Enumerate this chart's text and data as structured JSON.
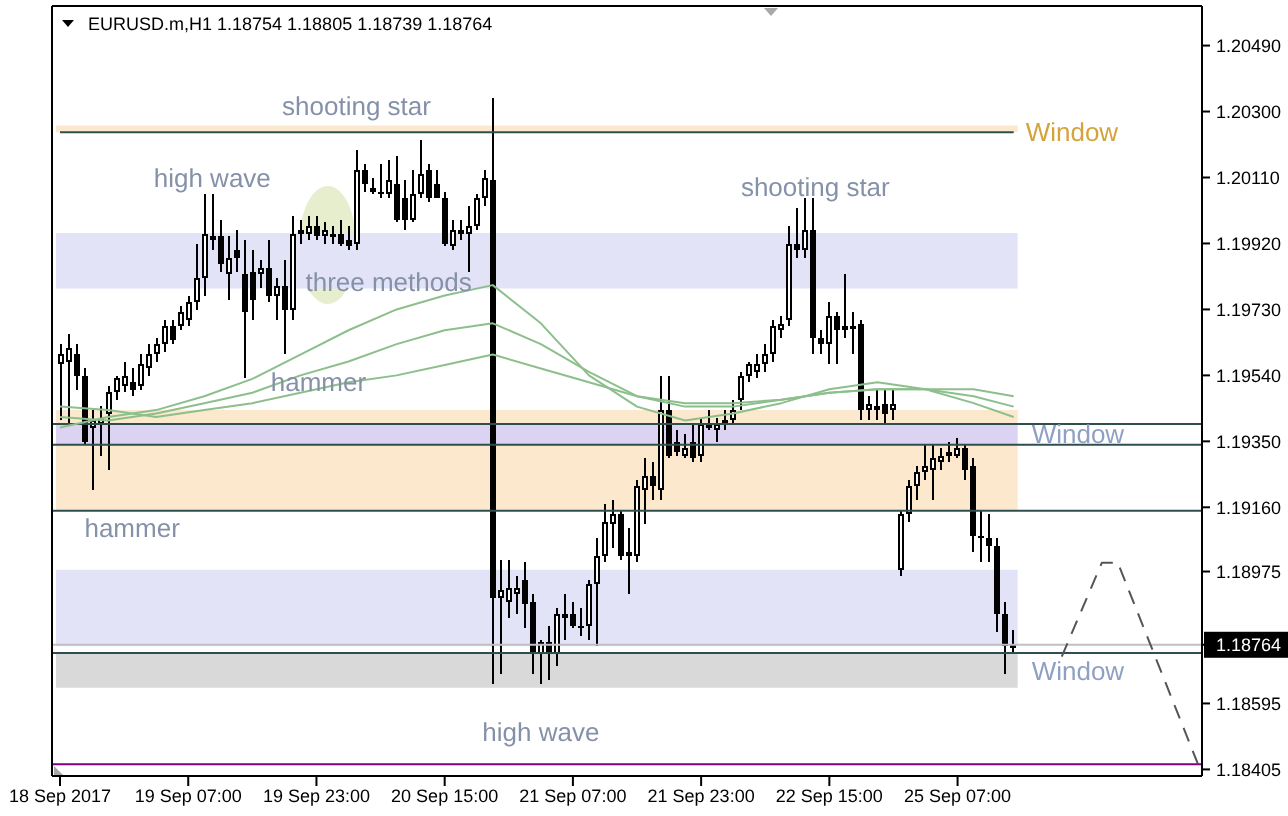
{
  "chart_data": {
    "type": "candlestick",
    "title": "EURUSD.m,H1 1.18754 1.18805 1.18739 1.18764",
    "color": "#000000",
    "categories": [
      "18 Sep 2017",
      null,
      null,
      null,
      null,
      null,
      null,
      null,
      null,
      null,
      null,
      null,
      null,
      null,
      null,
      null,
      "19 Sep 07:00",
      null,
      null,
      null,
      null,
      null,
      null,
      null,
      null,
      null,
      null,
      null,
      null,
      null,
      null,
      null,
      "19 Sep 23:00",
      null,
      null,
      null,
      null,
      null,
      null,
      null,
      null,
      null,
      null,
      null,
      null,
      null,
      null,
      null,
      "20 Sep 15:00",
      null,
      null,
      null,
      null,
      null,
      null,
      null,
      null,
      null,
      null,
      null,
      null,
      null,
      null,
      null,
      "21 Sep 07:00",
      null,
      null,
      null,
      null,
      null,
      null,
      null,
      null,
      null,
      null,
      null,
      null,
      null,
      null,
      null,
      "21 Sep 23:00",
      null,
      null,
      null,
      null,
      null,
      null,
      null,
      null,
      null,
      null,
      null,
      null,
      null,
      null,
      null,
      "22 Sep 15:00",
      null,
      null,
      null,
      null,
      null,
      null,
      null,
      null,
      null,
      null,
      null,
      null,
      null,
      null,
      null,
      "25 Sep 07:00",
      null,
      null,
      null,
      null,
      null,
      null,
      null,
      null,
      null,
      null,
      null,
      null,
      null,
      null,
      null,
      null,
      null,
      null,
      null,
      null,
      null,
      null,
      null,
      null,
      null,
      null,
      null,
      null,
      null,
      null
    ],
    "ohlc": [
      [
        1.1957,
        1.1963,
        1.1941,
        1.196
      ],
      [
        1.1958,
        1.1966,
        1.194,
        1.1962
      ],
      [
        1.196,
        1.1963,
        1.195,
        1.1954
      ],
      [
        1.1954,
        1.1956,
        1.1934,
        1.1935
      ],
      [
        1.1939,
        1.1944,
        1.1921,
        1.1941
      ],
      [
        1.194,
        1.1945,
        1.1931,
        1.1942
      ],
      [
        1.1943,
        1.1951,
        1.1927,
        1.1949
      ],
      [
        1.1949,
        1.1954,
        1.1947,
        1.1953
      ],
      [
        1.1951,
        1.1958,
        1.1949,
        1.1954
      ],
      [
        1.1952,
        1.1956,
        1.1948,
        1.195
      ],
      [
        1.1951,
        1.196,
        1.195,
        1.1957
      ],
      [
        1.1956,
        1.1963,
        1.1954,
        1.196
      ],
      [
        1.196,
        1.1965,
        1.1958,
        1.1963
      ],
      [
        1.1963,
        1.197,
        1.1961,
        1.1968
      ],
      [
        1.1968,
        1.197,
        1.1963,
        1.1964
      ],
      [
        1.1968,
        1.1974,
        1.1967,
        1.1972
      ],
      [
        1.197,
        1.1977,
        1.1968,
        1.1975
      ],
      [
        1.1975,
        1.1992,
        1.1973,
        1.1982
      ],
      [
        1.1982,
        1.2006,
        1.1977,
        1.1995
      ],
      [
        1.1993,
        1.2006,
        1.199,
        1.1994
      ],
      [
        1.1994,
        1.1999,
        1.1984,
        1.1986
      ],
      [
        1.1983,
        1.1994,
        1.1976,
        1.1988
      ],
      [
        1.199,
        1.1996,
        1.1984,
        1.1988
      ],
      [
        1.1983,
        1.1993,
        1.1953,
        1.1972
      ],
      [
        1.1984,
        1.199,
        1.197,
        1.1976
      ],
      [
        1.1983,
        1.1987,
        1.1979,
        1.1985
      ],
      [
        1.1985,
        1.1993,
        1.1975,
        1.1977
      ],
      [
        1.1977,
        1.1982,
        1.197,
        1.198
      ],
      [
        1.198,
        1.1987,
        1.196,
        1.1973
      ],
      [
        1.1973,
        1.2,
        1.197,
        1.1995
      ],
      [
        1.1995,
        1.1999,
        1.1992,
        1.1996
      ],
      [
        1.1995,
        1.2,
        1.1993,
        1.1997
      ],
      [
        1.1997,
        1.2,
        1.1993,
        1.1994
      ],
      [
        1.1994,
        1.1998,
        1.1992,
        1.1996
      ],
      [
        1.1995,
        1.1997,
        1.1992,
        1.1995
      ],
      [
        1.1995,
        1.1999,
        1.1991,
        1.1992
      ],
      [
        1.1993,
        1.1997,
        1.199,
        1.1991
      ],
      [
        1.1992,
        1.2019,
        1.199,
        1.2013
      ],
      [
        1.2013,
        1.2015,
        1.2007,
        1.2009
      ],
      [
        1.2007,
        1.2011,
        1.2006,
        1.2008
      ],
      [
        1.2007,
        1.2015,
        1.2005,
        1.2006
      ],
      [
        1.2006,
        1.2016,
        1.2005,
        1.201
      ],
      [
        1.2009,
        1.2017,
        1.1998,
        1.1999
      ],
      [
        1.2005,
        1.201,
        1.1996,
        1.1999
      ],
      [
        1.1999,
        1.2013,
        1.1998,
        1.2006
      ],
      [
        1.2006,
        1.2022,
        1.2005,
        1.2012
      ],
      [
        1.2013,
        1.2015,
        1.2004,
        1.2005
      ],
      [
        1.2009,
        1.2013,
        1.2005,
        1.2005
      ],
      [
        1.2005,
        1.2007,
        1.1991,
        1.1992
      ],
      [
        1.1991,
        1.1999,
        1.199,
        1.1996
      ],
      [
        1.1995,
        1.1999,
        1.1993,
        1.1996
      ],
      [
        1.1995,
        1.2003,
        1.1984,
        1.1997
      ],
      [
        1.1997,
        1.2006,
        1.1996,
        1.2005
      ],
      [
        1.2005,
        1.2013,
        1.2003,
        1.2011
      ],
      [
        1.201,
        1.2034,
        1.1865,
        1.189
      ],
      [
        1.189,
        1.1901,
        1.1868,
        1.1892
      ],
      [
        1.1889,
        1.1901,
        1.1884,
        1.1893
      ],
      [
        1.1891,
        1.1896,
        1.1885,
        1.1893
      ],
      [
        1.1895,
        1.19,
        1.1881,
        1.1888
      ],
      [
        1.1889,
        1.1891,
        1.1868,
        1.1874
      ],
      [
        1.1874,
        1.1878,
        1.1865,
        1.1877
      ],
      [
        1.1877,
        1.1882,
        1.1866,
        1.1874
      ],
      [
        1.1874,
        1.1887,
        1.187,
        1.1885
      ],
      [
        1.1884,
        1.1891,
        1.1878,
        1.1885
      ],
      [
        1.1885,
        1.1889,
        1.1881,
        1.1882
      ],
      [
        1.1882,
        1.1887,
        1.1879,
        1.1881
      ],
      [
        1.1882,
        1.1895,
        1.1878,
        1.1894
      ],
      [
        1.1894,
        1.1907,
        1.1876,
        1.1902
      ],
      [
        1.1902,
        1.1917,
        1.19,
        1.1912
      ],
      [
        1.1911,
        1.1918,
        1.1904,
        1.1914
      ],
      [
        1.1914,
        1.1915,
        1.1901,
        1.1902
      ],
      [
        1.1902,
        1.191,
        1.1891,
        1.1903
      ],
      [
        1.1902,
        1.1924,
        1.19,
        1.1922
      ],
      [
        1.1921,
        1.193,
        1.1911,
        1.1925
      ],
      [
        1.1925,
        1.1929,
        1.1918,
        1.1922
      ],
      [
        1.1921,
        1.1954,
        1.1918,
        1.1944
      ],
      [
        1.1944,
        1.1954,
        1.193,
        1.1931
      ],
      [
        1.1935,
        1.1938,
        1.1931,
        1.1932
      ],
      [
        1.1931,
        1.1937,
        1.193,
        1.1933
      ],
      [
        1.1935,
        1.194,
        1.1929,
        1.193
      ],
      [
        1.1931,
        1.1942,
        1.1929,
        1.194
      ],
      [
        1.1939,
        1.1944,
        1.1938,
        1.194
      ],
      [
        1.1938,
        1.1942,
        1.1935,
        1.194
      ],
      [
        1.194,
        1.1944,
        1.1938,
        1.1941
      ],
      [
        1.1941,
        1.1947,
        1.194,
        1.1944
      ],
      [
        1.1947,
        1.1955,
        1.1944,
        1.1954
      ],
      [
        1.1954,
        1.1958,
        1.1952,
        1.1957
      ],
      [
        1.1955,
        1.196,
        1.1953,
        1.1957
      ],
      [
        1.1957,
        1.1963,
        1.1955,
        1.196
      ],
      [
        1.196,
        1.197,
        1.1958,
        1.1968
      ],
      [
        1.1967,
        1.1971,
        1.1965,
        1.1969
      ],
      [
        1.197,
        1.1997,
        1.1968,
        1.1992
      ],
      [
        1.1992,
        1.2002,
        1.1988,
        1.199
      ],
      [
        1.199,
        1.2005,
        1.1988,
        1.1996
      ],
      [
        1.1996,
        1.2005,
        1.196,
        1.1965
      ],
      [
        1.1965,
        1.1967,
        1.196,
        1.1963
      ],
      [
        1.1963,
        1.1975,
        1.1957,
        1.1971
      ],
      [
        1.1971,
        1.1972,
        1.1957,
        1.1967
      ],
      [
        1.1968,
        1.1983,
        1.1965,
        1.1967
      ],
      [
        1.1968,
        1.1972,
        1.196,
        1.1968
      ],
      [
        1.1969,
        1.197,
        1.1941,
        1.1944
      ],
      [
        1.1944,
        1.1948,
        1.1941,
        1.1946
      ],
      [
        1.1945,
        1.195,
        1.1941,
        1.1944
      ],
      [
        1.1946,
        1.195,
        1.194,
        1.1943
      ],
      [
        1.1944,
        1.195,
        1.1941,
        1.1946
      ],
      [
        1.1898,
        1.1915,
        1.1896,
        1.1914
      ],
      [
        1.1914,
        1.1924,
        1.1912,
        1.1922
      ],
      [
        1.1922,
        1.1928,
        1.1918,
        1.1926
      ],
      [
        1.1926,
        1.1934,
        1.1924,
        1.1928
      ],
      [
        1.1927,
        1.1934,
        1.1918,
        1.193
      ],
      [
        1.1929,
        1.1933,
        1.1927,
        1.1931
      ],
      [
        1.1931,
        1.1935,
        1.1929,
        1.1932
      ],
      [
        1.1931,
        1.1936,
        1.193,
        1.1933
      ],
      [
        1.1933,
        1.1934,
        1.1924,
        1.1927
      ],
      [
        1.1928,
        1.193,
        1.1903,
        1.1908
      ],
      [
        1.1908,
        1.1915,
        1.19,
        1.1907
      ],
      [
        1.1907,
        1.1914,
        1.19,
        1.1905
      ],
      [
        1.1905,
        1.1907,
        1.188,
        1.1885
      ],
      [
        1.1885,
        1.1889,
        1.1868,
        1.1876
      ],
      [
        1.18754,
        1.18805,
        1.18739,
        1.18764
      ],
      null,
      null,
      null,
      null,
      null,
      null,
      null,
      null,
      null,
      null,
      null,
      null,
      null,
      null,
      null,
      null,
      null,
      null,
      null,
      null,
      null,
      null,
      null
    ],
    "series": [
      {
        "type": "line",
        "color": "#8cbf8c",
        "values": [
          1.1939,
          null,
          null,
          null,
          null,
          null,
          1.1942,
          null,
          null,
          null,
          null,
          null,
          1.1944,
          null,
          null,
          null,
          null,
          null,
          1.1948,
          null,
          null,
          null,
          null,
          null,
          1.1953,
          null,
          null,
          null,
          null,
          null,
          1.196,
          null,
          null,
          null,
          null,
          null,
          1.1967,
          null,
          null,
          null,
          null,
          null,
          1.1973,
          null,
          null,
          null,
          null,
          null,
          1.1977,
          null,
          null,
          null,
          null,
          null,
          1.198,
          null,
          null,
          null,
          null,
          null,
          1.1969,
          null,
          null,
          null,
          null,
          null,
          1.1954,
          null,
          null,
          null,
          null,
          null,
          1.1945,
          null,
          null,
          null,
          null,
          null,
          1.1941,
          null,
          null,
          null,
          null,
          null,
          1.1943,
          null,
          null,
          null,
          null,
          null,
          1.1946,
          null,
          null,
          null,
          null,
          null,
          1.195,
          null,
          null,
          null,
          null,
          null,
          1.1952,
          null,
          null,
          null,
          null,
          null,
          1.195,
          null,
          null,
          null,
          null,
          null,
          1.1946,
          null,
          null,
          null,
          null,
          1.1942,
          null,
          null,
          null,
          null,
          null,
          null,
          null,
          null,
          null,
          null,
          null,
          null,
          null,
          null,
          null,
          null,
          null,
          null,
          null,
          null,
          null,
          null,
          null
        ]
      },
      {
        "type": "line",
        "color": "#8cbf8c",
        "values": [
          1.1942,
          null,
          null,
          null,
          null,
          null,
          1.1941,
          null,
          null,
          null,
          null,
          null,
          1.1943,
          null,
          null,
          null,
          null,
          null,
          1.1946,
          null,
          null,
          null,
          null,
          null,
          1.1949,
          null,
          null,
          null,
          null,
          null,
          1.1954,
          null,
          null,
          null,
          null,
          null,
          1.1958,
          null,
          null,
          null,
          null,
          null,
          1.1963,
          null,
          null,
          null,
          null,
          null,
          1.1967,
          null,
          null,
          null,
          null,
          null,
          1.1969,
          null,
          null,
          null,
          null,
          null,
          1.1963,
          null,
          null,
          null,
          null,
          null,
          1.1955,
          null,
          null,
          null,
          null,
          null,
          1.1948,
          null,
          null,
          null,
          null,
          null,
          1.1945,
          null,
          null,
          null,
          null,
          null,
          1.1945,
          null,
          null,
          null,
          null,
          null,
          1.1947,
          null,
          null,
          null,
          null,
          null,
          1.1949,
          null,
          null,
          null,
          null,
          null,
          1.195,
          null,
          null,
          null,
          null,
          null,
          1.195,
          null,
          null,
          null,
          null,
          null,
          1.1948,
          null,
          null,
          null,
          null,
          1.1945,
          null,
          null,
          null,
          null,
          null,
          null,
          null,
          null,
          null,
          null,
          null,
          null,
          null,
          null,
          null,
          null,
          null,
          null,
          null,
          null,
          null,
          null,
          null
        ]
      },
      {
        "type": "line",
        "color": "#8cbf8c",
        "values": [
          1.1945,
          null,
          null,
          null,
          null,
          null,
          1.1944,
          null,
          null,
          null,
          null,
          null,
          1.1942,
          null,
          null,
          null,
          null,
          null,
          1.1944,
          null,
          null,
          null,
          null,
          null,
          1.1946,
          null,
          null,
          null,
          null,
          null,
          1.1949,
          null,
          null,
          null,
          null,
          null,
          1.1952,
          null,
          null,
          null,
          null,
          null,
          1.1954,
          null,
          null,
          null,
          null,
          null,
          1.1957,
          null,
          null,
          null,
          null,
          null,
          1.196,
          null,
          null,
          null,
          null,
          null,
          1.1956,
          null,
          null,
          null,
          null,
          null,
          1.1952,
          null,
          null,
          null,
          null,
          null,
          1.1948,
          null,
          null,
          null,
          null,
          null,
          1.1946,
          null,
          null,
          null,
          null,
          null,
          1.1946,
          null,
          null,
          null,
          null,
          null,
          1.1947,
          null,
          null,
          null,
          null,
          null,
          1.1949,
          null,
          null,
          null,
          null,
          null,
          1.195,
          null,
          null,
          null,
          null,
          null,
          1.195,
          null,
          null,
          null,
          null,
          null,
          1.195,
          null,
          null,
          null,
          null,
          1.1948,
          null,
          null,
          null,
          null,
          null,
          null,
          null,
          null,
          null,
          null,
          null,
          null,
          null,
          null,
          null,
          null,
          null,
          null,
          null,
          null,
          null,
          null,
          null
        ]
      },
      {
        "type": "line",
        "color": "#555555",
        "line_style": "dashed",
        "values": [
          null,
          null,
          null,
          null,
          null,
          null,
          null,
          null,
          null,
          null,
          null,
          null,
          null,
          null,
          null,
          null,
          null,
          null,
          null,
          null,
          null,
          null,
          null,
          null,
          null,
          null,
          null,
          null,
          null,
          null,
          null,
          null,
          null,
          null,
          null,
          null,
          null,
          null,
          null,
          null,
          null,
          null,
          null,
          null,
          null,
          null,
          null,
          null,
          null,
          null,
          null,
          null,
          null,
          null,
          null,
          null,
          null,
          null,
          null,
          null,
          null,
          null,
          null,
          null,
          null,
          null,
          null,
          null,
          null,
          null,
          null,
          null,
          null,
          null,
          null,
          null,
          null,
          null,
          null,
          null,
          null,
          null,
          null,
          null,
          null,
          null,
          null,
          null,
          null,
          null,
          null,
          null,
          null,
          null,
          null,
          null,
          null,
          null,
          null,
          null,
          null,
          null,
          null,
          null,
          null,
          null,
          null,
          null,
          null,
          null,
          null,
          null,
          null,
          null,
          null,
          null,
          null,
          null,
          null,
          null,
          null,
          null,
          null,
          null,
          null,
          1.1873,
          null,
          null,
          null,
          null,
          1.19,
          null,
          1.19,
          null,
          null,
          null,
          null,
          null,
          null,
          null,
          null,
          null,
          1.1842
        ]
      }
    ],
    "ylim": [
      1.18386,
      1.20604
    ],
    "yticks": [
      1.18405,
      1.18595,
      1.18764,
      1.18975,
      {
        "value": 1.1916,
        "label": "1.19160"
      },
      {
        "value": 1.1935,
        "label": "1.19350"
      },
      {
        "value": 1.1954,
        "label": "1.19540"
      },
      {
        "value": 1.1973,
        "label": "1.19730"
      },
      {
        "value": 1.1992,
        "label": "1.19920"
      },
      {
        "value": 1.2011,
        "label": "1.20110"
      },
      {
        "value": 1.203,
        "label": "1.20300"
      },
      {
        "value": 1.2049,
        "label": "1.20490"
      }
    ],
    "bands": [
      {
        "axis": "y",
        "from": 1.2024,
        "to": 1.2026,
        "color": "#fbe8cd"
      },
      {
        "axis": "y",
        "from": 1.1979,
        "to": 1.1995,
        "color": "#e3e3f8"
      },
      {
        "axis": "y",
        "from": 1.194,
        "to": 1.1944,
        "color": "#fbe8cd"
      },
      {
        "axis": "y",
        "from": 1.1934,
        "to": 1.194,
        "color": "#dcd2f2",
        "label": "Window"
      },
      {
        "axis": "y",
        "from": 1.1915,
        "to": 1.1934,
        "color": "#fbe8cd"
      },
      {
        "axis": "y",
        "from": 1.1876,
        "to": 1.1898,
        "color": "#e3e3f8"
      },
      {
        "axis": "y",
        "from": 1.1864,
        "to": 1.1874,
        "color": "#d9d9d9",
        "label": "Window"
      }
    ],
    "ref_lines": [
      {
        "axis": "y",
        "value": 1.2024,
        "label": "Window",
        "color": "#2f4f4f"
      },
      {
        "axis": "y",
        "value": 1.18764,
        "color": "#c0c0c0"
      },
      {
        "axis": "y",
        "value": 1.1842,
        "color": "#800080"
      },
      {
        "axis": "y",
        "value": 1.194,
        "color": "#2f4f4f"
      },
      {
        "axis": "y",
        "value": 1.1934,
        "color": "#2f4f4f"
      },
      {
        "axis": "y",
        "value": 1.1915,
        "color": "#2f4f4f"
      },
      {
        "axis": "y",
        "value": 1.1874,
        "color": "#2f4f4f"
      }
    ],
    "annotations": [
      "shooting star",
      {
        "text": "high wave",
        "y": 1.2006
      },
      {
        "text": "shooting star",
        "y": 1.2005
      },
      "three methods",
      "hammer",
      "hammer",
      {
        "text": "high wave",
        "y": 1.1865
      }
    ]
  }
}
